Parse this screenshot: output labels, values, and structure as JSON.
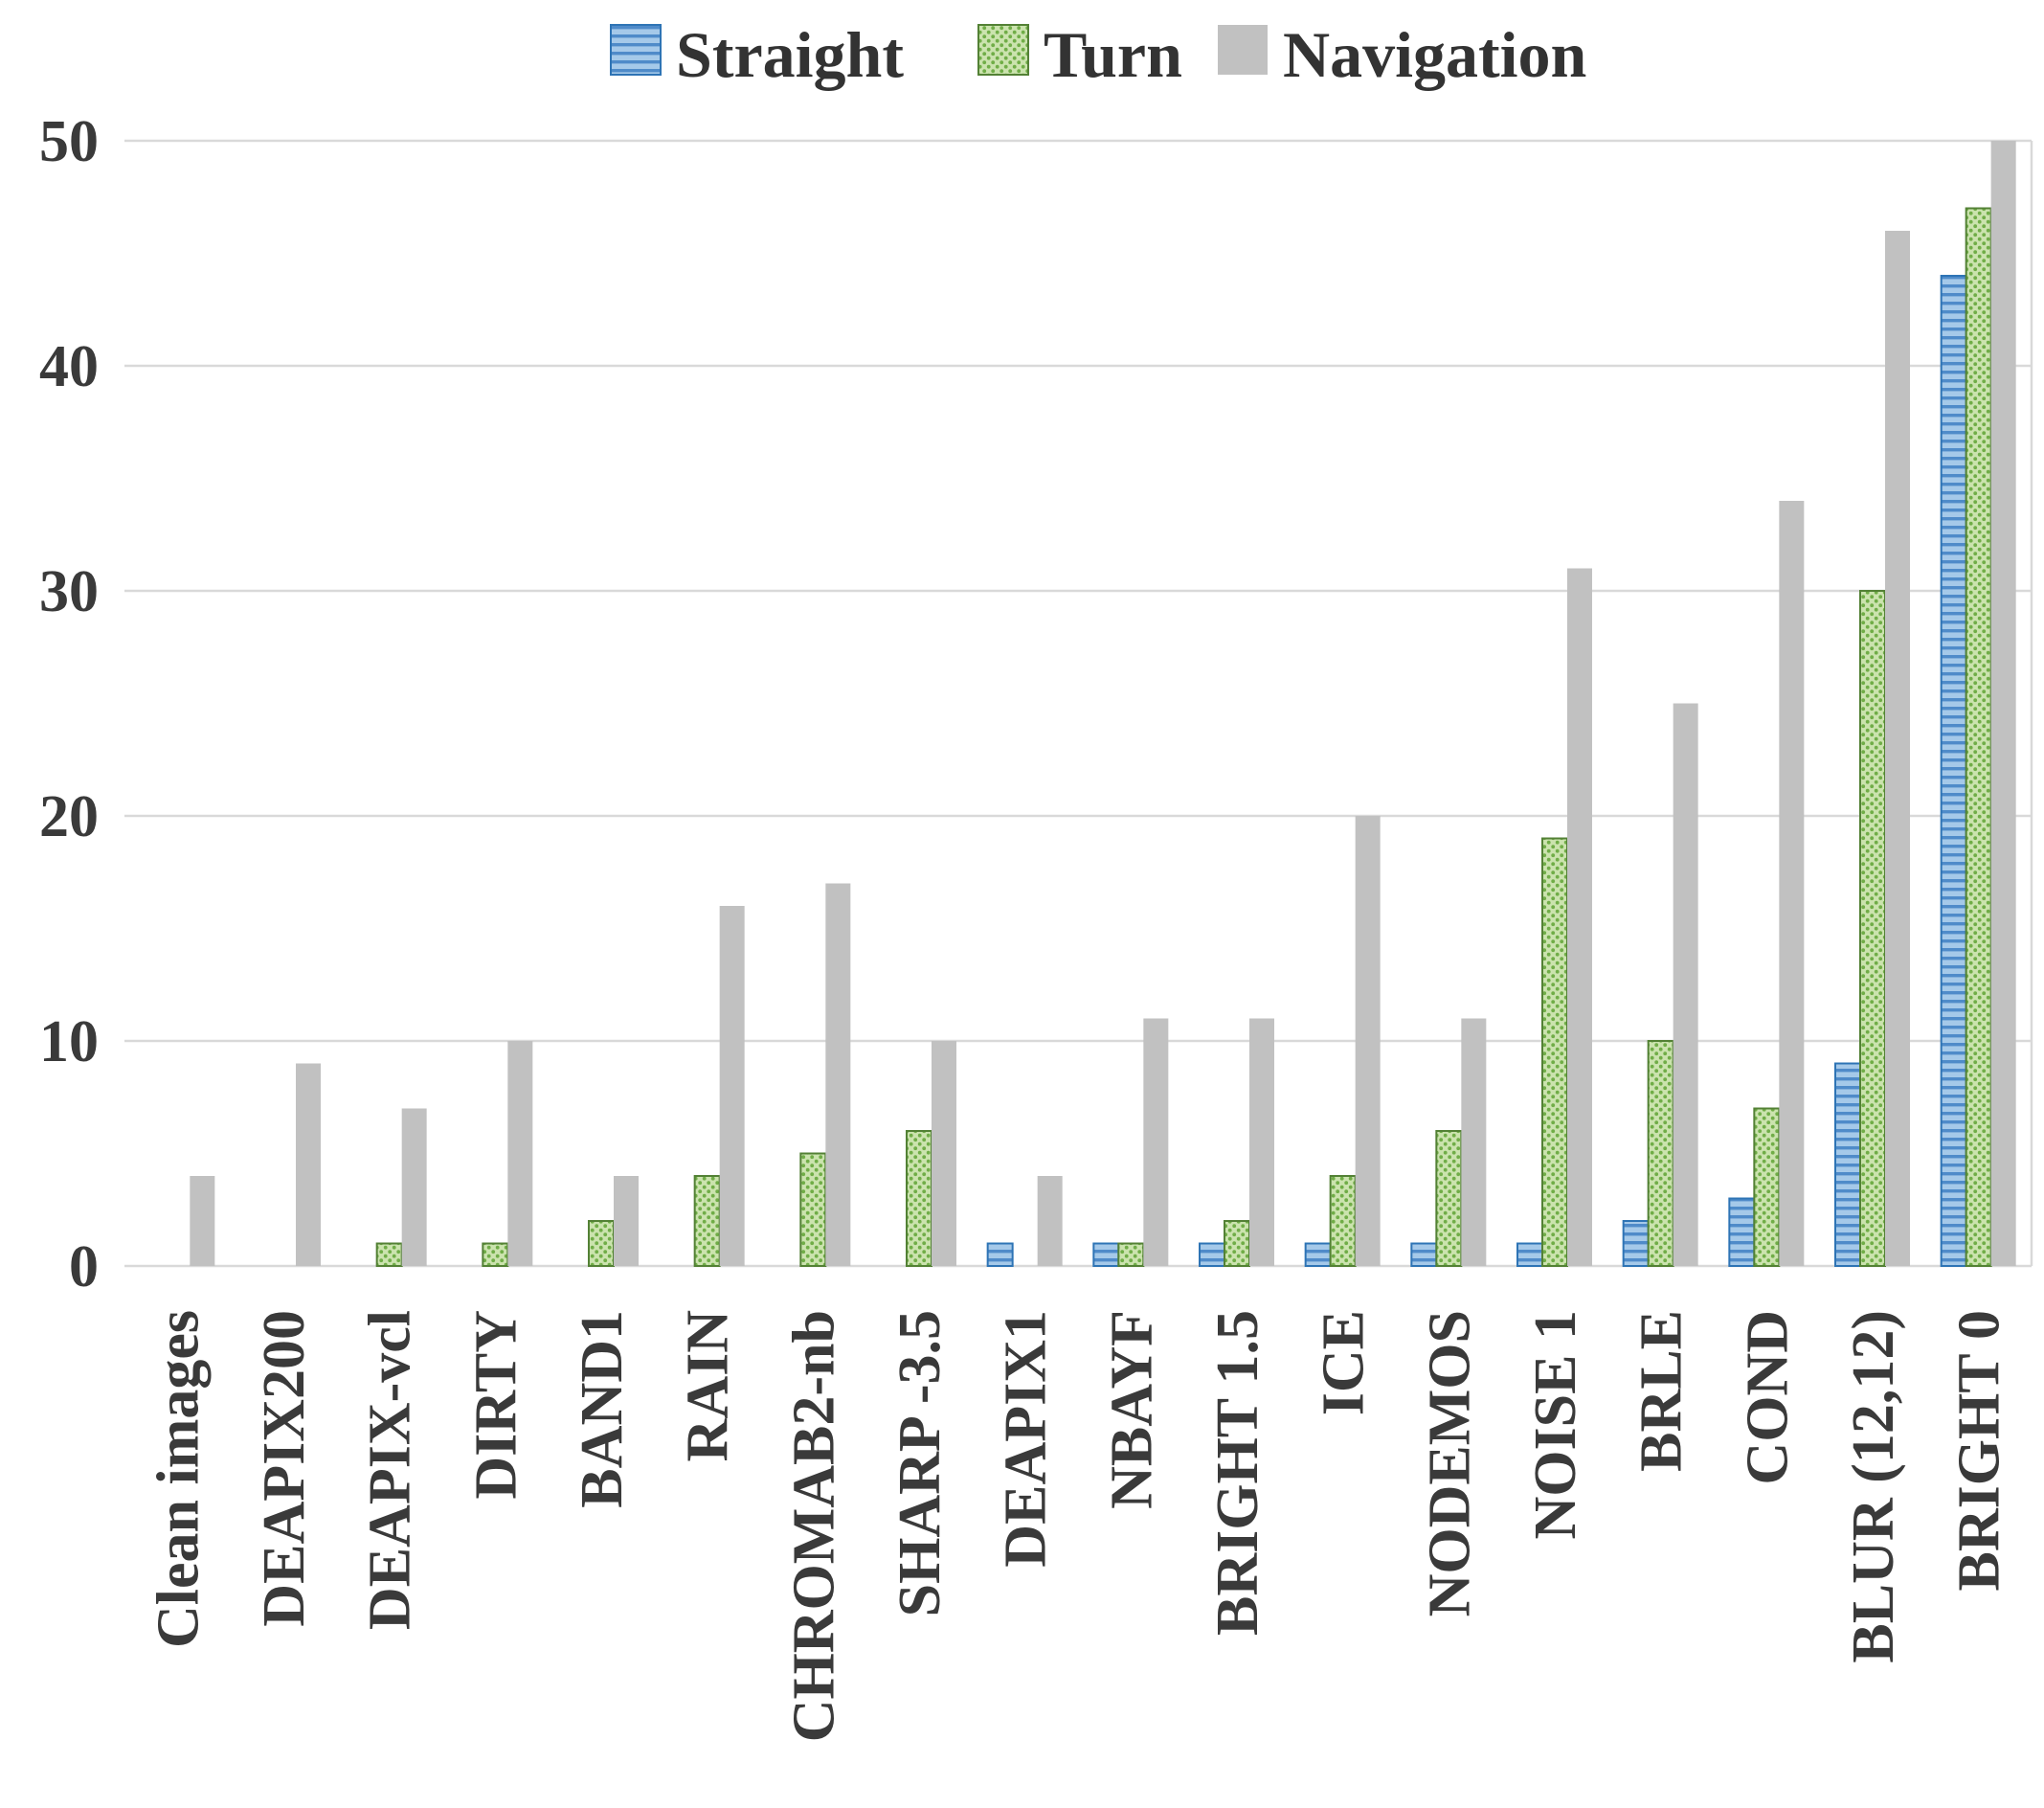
{
  "chart_data": {
    "type": "bar",
    "title": "",
    "xlabel": "",
    "ylabel": "",
    "ylim": [
      0,
      50
    ],
    "yticks": [
      0,
      10,
      20,
      30,
      40,
      50
    ],
    "grid": true,
    "legend_position": "top",
    "background_color": "#FFFFFF",
    "gridline_color": "#D9D9D9",
    "axis_text_color": "#3A3A3A",
    "categories": [
      "Clean images",
      "DEAPIX200",
      "DEAPIX-vcl",
      "DIRTY",
      "BAND1",
      "RAIN",
      "CHROMAB2-nb",
      "SHARP -3.5",
      "DEAPIX1",
      "NBAYF",
      "BRIGHT 1.5",
      "ICE",
      "NODEMOS",
      "NOISE 1",
      "BRLE",
      "COND",
      "BLUR (12,12)",
      "BRIGHT 0"
    ],
    "series": [
      {
        "name": "Straight",
        "pattern": "horizontal-stripes",
        "fill_base": "#A5C9E9",
        "fill_accent": "#4F8BC9",
        "border": "#2E74B5",
        "values": [
          0,
          0,
          0,
          0,
          0,
          0,
          0,
          0,
          1,
          1,
          1,
          1,
          1,
          1,
          2,
          3,
          9,
          44
        ]
      },
      {
        "name": "Turn",
        "pattern": "diagonal-dots",
        "fill_base": "#CBE3AE",
        "fill_accent": "#70AD47",
        "border": "#538135",
        "values": [
          0,
          0,
          1,
          1,
          2,
          4,
          5,
          6,
          0,
          1,
          2,
          4,
          6,
          19,
          10,
          7,
          30,
          47
        ]
      },
      {
        "name": "Navigation",
        "pattern": "solid",
        "fill_base": "#C1C1C1",
        "fill_accent": "#C1C1C1",
        "border": null,
        "values": [
          4,
          9,
          7,
          10,
          4,
          16,
          17,
          10,
          4,
          11,
          11,
          20,
          11,
          31,
          25,
          34,
          46,
          50
        ]
      }
    ]
  }
}
